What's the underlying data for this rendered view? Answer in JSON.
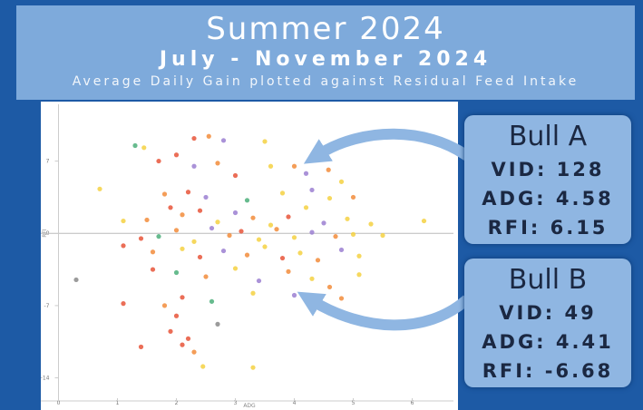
{
  "header": {
    "title": "Summer 2024",
    "subtitle": "July - November 2024",
    "caption": "Average Daily Gain plotted against Residual Feed Intake"
  },
  "chart_data": {
    "type": "scatter",
    "x_label": "ADG",
    "y_label": "RFI",
    "xlim": [
      -0.3,
      6.7
    ],
    "ylim": [
      -16.5,
      12.5
    ],
    "xticks": [
      0,
      1,
      2,
      3,
      4,
      5,
      6
    ],
    "yticks": [
      -14,
      -7,
      0,
      7
    ],
    "x": [
      1.3,
      1.45,
      2.3,
      2.55,
      2.8,
      3.5,
      2.0,
      1.7,
      2.3,
      2.7,
      3.0,
      3.6,
      4.0,
      4.2,
      4.58,
      4.8,
      0.7,
      1.8,
      2.2,
      2.5,
      3.2,
      3.8,
      4.3,
      4.6,
      5.0,
      1.1,
      1.5,
      1.9,
      2.1,
      2.4,
      2.7,
      3.0,
      3.3,
      3.6,
      3.9,
      4.2,
      4.5,
      4.9,
      5.3,
      6.2,
      1.4,
      1.7,
      2.0,
      2.3,
      2.6,
      2.9,
      3.1,
      3.4,
      3.7,
      4.0,
      4.3,
      4.7,
      5.0,
      5.5,
      1.1,
      1.6,
      2.1,
      2.4,
      2.8,
      3.2,
      3.5,
      3.8,
      4.1,
      4.4,
      4.8,
      5.1,
      0.3,
      1.6,
      2.0,
      2.5,
      3.0,
      3.4,
      3.9,
      4.3,
      4.6,
      5.1,
      1.1,
      1.8,
      2.1,
      2.6,
      3.3,
      4.0,
      4.41,
      4.8,
      2.0,
      1.9,
      2.2,
      2.7,
      1.4,
      2.1,
      2.3,
      2.45,
      3.3
    ],
    "values": [
      8.5,
      8.3,
      9.2,
      9.4,
      9.0,
      8.9,
      7.6,
      7.0,
      6.5,
      6.8,
      5.6,
      6.5,
      6.5,
      5.8,
      6.15,
      5.0,
      4.3,
      3.8,
      4.0,
      3.5,
      3.2,
      3.9,
      4.2,
      3.4,
      3.5,
      1.2,
      1.3,
      2.5,
      1.8,
      2.2,
      1.1,
      2.0,
      1.5,
      0.8,
      1.6,
      2.5,
      1.0,
      1.4,
      0.9,
      1.2,
      -0.5,
      -0.3,
      0.3,
      -0.8,
      0.5,
      -0.2,
      0.2,
      -0.6,
      0.4,
      -0.4,
      0.1,
      -0.3,
      -0.1,
      -0.2,
      -1.2,
      -1.8,
      -1.5,
      -2.3,
      -1.7,
      -2.1,
      -1.3,
      -2.4,
      -1.9,
      -2.6,
      -1.6,
      -2.2,
      -4.5,
      -3.5,
      -3.8,
      -4.2,
      -3.4,
      -4.6,
      -3.7,
      -4.4,
      -5.2,
      -4.0,
      -6.8,
      -7.0,
      -6.2,
      -6.6,
      -5.8,
      -6.0,
      -6.68,
      -6.3,
      -8.0,
      -9.5,
      -10.2,
      -8.8,
      -11.0,
      -10.8,
      -11.5,
      -12.9,
      -13.0
    ],
    "colors": [
      "#4caf7a",
      "#f5d142",
      "#e8553a",
      "#f28c3b",
      "#9b7fd1",
      "#f5d142",
      "#e8553a",
      "#e8553a",
      "#9b7fd1",
      "#f28c3b",
      "#e8553a",
      "#f5d142",
      "#f28c3b",
      "#9b7fd1",
      "#f28c3b",
      "#f5d142",
      "#f5d142",
      "#f28c3b",
      "#e8553a",
      "#9b7fd1",
      "#4caf7a",
      "#f5d142",
      "#9b7fd1",
      "#f5d142",
      "#f28c3b",
      "#f5d142",
      "#f28c3b",
      "#e8553a",
      "#f28c3b",
      "#e8553a",
      "#f5d142",
      "#9b7fd1",
      "#f28c3b",
      "#f5d142",
      "#e8553a",
      "#f5d142",
      "#9b7fd1",
      "#f5d142",
      "#f5d142",
      "#f5d142",
      "#e8553a",
      "#4caf7a",
      "#f28c3b",
      "#f5d142",
      "#9b7fd1",
      "#f28c3b",
      "#e8553a",
      "#f5d142",
      "#f28c3b",
      "#f5d142",
      "#9b7fd1",
      "#f28c3b",
      "#f5d142",
      "#f5d142",
      "#e8553a",
      "#f28c3b",
      "#f5d142",
      "#e8553a",
      "#9b7fd1",
      "#f28c3b",
      "#f5d142",
      "#e8553a",
      "#f5d142",
      "#f28c3b",
      "#9b7fd1",
      "#f5d142",
      "#8a8a8a",
      "#e8553a",
      "#4caf7a",
      "#f28c3b",
      "#f5d142",
      "#9b7fd1",
      "#f28c3b",
      "#f5d142",
      "#f28c3b",
      "#f5d142",
      "#e8553a",
      "#f28c3b",
      "#e8553a",
      "#4caf7a",
      "#f5d142",
      "#9b7fd1",
      "#f5d142",
      "#f28c3b",
      "#e8553a",
      "#e8553a",
      "#e8553a",
      "#8a8a8a",
      "#e8553a",
      "#e8553a",
      "#f28c3b",
      "#f5d142",
      "#f5d142"
    ]
  },
  "annotations": [
    {
      "title": "Bull A",
      "lines": [
        "VID: 128",
        "ADG: 4.58",
        "RFI: 6.15"
      ]
    },
    {
      "title": "Bull B",
      "lines": [
        "VID: 49",
        "ADG: 4.41",
        "RFI: -6.68"
      ]
    }
  ]
}
